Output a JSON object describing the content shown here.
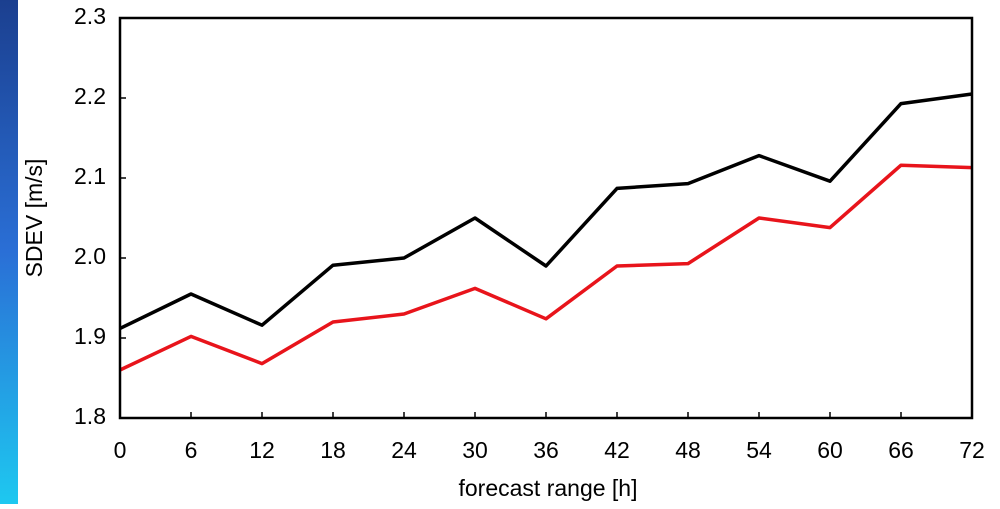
{
  "chart_data": {
    "type": "line",
    "x_label": "forecast range [h]",
    "y_label": "SDEV [m/s]",
    "x": [
      0,
      6,
      12,
      18,
      24,
      30,
      36,
      42,
      48,
      54,
      60,
      66,
      72
    ],
    "series": [
      {
        "color": "#000000",
        "values": [
          1.912,
          1.955,
          1.916,
          1.991,
          2.0,
          2.05,
          1.99,
          2.087,
          2.093,
          2.128,
          2.096,
          2.193,
          2.205
        ]
      },
      {
        "color": "#e8141b",
        "values": [
          1.86,
          1.902,
          1.868,
          1.92,
          1.93,
          1.962,
          1.924,
          1.99,
          1.993,
          2.05,
          2.038,
          2.116,
          2.113
        ]
      }
    ],
    "xlim": [
      0,
      72
    ],
    "xticks": [
      0,
      6,
      12,
      18,
      24,
      30,
      36,
      42,
      48,
      54,
      60,
      66,
      72
    ],
    "ylim": [
      1.8,
      2.3
    ],
    "yticks": [
      1.8,
      1.9,
      {
        "value": 2.0,
        "label": "2.0"
      },
      2.1,
      2.2,
      2.3
    ]
  }
}
